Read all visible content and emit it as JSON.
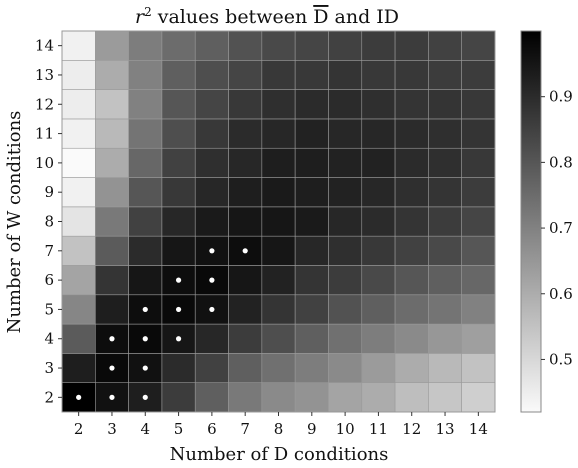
{
  "chart_data": {
    "type": "heatmap",
    "title": "r² values between D̅ and ID",
    "title_parts": {
      "r": "r",
      "exp": "2",
      "mid": " values between ",
      "dbar": "D",
      "end": " and ID"
    },
    "xlabel": "Number of D conditions",
    "ylabel": "Number of W conditions",
    "x": [
      2,
      3,
      4,
      5,
      6,
      7,
      8,
      9,
      10,
      11,
      12,
      13,
      14
    ],
    "y": [
      2,
      3,
      4,
      5,
      6,
      7,
      8,
      9,
      10,
      11,
      12,
      13,
      14
    ],
    "colormap": "greys",
    "value_range": [
      0.42,
      1.0
    ],
    "colorbar_ticks": [
      0.5,
      0.6,
      0.7,
      0.8,
      0.9
    ],
    "colorbar_tick_labels": [
      "0.5",
      "0.6",
      "0.7",
      "0.8",
      "0.9"
    ],
    "grid": true,
    "values": [
      [
        1.0,
        0.96,
        0.93,
        0.86,
        0.78,
        0.72,
        0.68,
        0.66,
        0.62,
        0.6,
        0.56,
        0.54,
        0.52
      ],
      [
        0.93,
        0.98,
        0.96,
        0.9,
        0.85,
        0.78,
        0.74,
        0.71,
        0.68,
        0.64,
        0.6,
        0.57,
        0.55
      ],
      [
        0.79,
        0.97,
        0.98,
        0.95,
        0.91,
        0.86,
        0.82,
        0.78,
        0.74,
        0.71,
        0.68,
        0.65,
        0.63
      ],
      [
        0.69,
        0.93,
        0.97,
        0.98,
        0.96,
        0.92,
        0.88,
        0.85,
        0.81,
        0.78,
        0.75,
        0.73,
        0.7
      ],
      [
        0.62,
        0.88,
        0.95,
        0.97,
        0.98,
        0.95,
        0.92,
        0.88,
        0.86,
        0.83,
        0.8,
        0.78,
        0.76
      ],
      [
        0.55,
        0.79,
        0.9,
        0.95,
        0.96,
        0.97,
        0.95,
        0.91,
        0.89,
        0.87,
        0.85,
        0.83,
        0.8
      ],
      [
        0.47,
        0.72,
        0.85,
        0.91,
        0.94,
        0.95,
        0.95,
        0.94,
        0.91,
        0.9,
        0.88,
        0.86,
        0.84
      ],
      [
        0.44,
        0.66,
        0.8,
        0.87,
        0.91,
        0.93,
        0.94,
        0.93,
        0.92,
        0.91,
        0.89,
        0.88,
        0.86
      ],
      [
        0.42,
        0.6,
        0.76,
        0.85,
        0.89,
        0.91,
        0.93,
        0.93,
        0.92,
        0.92,
        0.9,
        0.89,
        0.87
      ],
      [
        0.44,
        0.57,
        0.73,
        0.82,
        0.87,
        0.9,
        0.91,
        0.92,
        0.91,
        0.91,
        0.9,
        0.89,
        0.88
      ],
      [
        0.45,
        0.55,
        0.7,
        0.8,
        0.84,
        0.87,
        0.89,
        0.9,
        0.9,
        0.89,
        0.88,
        0.88,
        0.87
      ],
      [
        0.45,
        0.6,
        0.7,
        0.78,
        0.82,
        0.84,
        0.87,
        0.87,
        0.88,
        0.87,
        0.87,
        0.86,
        0.86
      ],
      [
        0.44,
        0.64,
        0.71,
        0.75,
        0.78,
        0.81,
        0.83,
        0.84,
        0.85,
        0.86,
        0.86,
        0.85,
        0.84
      ]
    ],
    "markers": [
      [
        2,
        2
      ],
      [
        3,
        2
      ],
      [
        4,
        2
      ],
      [
        3,
        3
      ],
      [
        4,
        3
      ],
      [
        3,
        4
      ],
      [
        4,
        4
      ],
      [
        5,
        4
      ],
      [
        4,
        5
      ],
      [
        5,
        5
      ],
      [
        6,
        5
      ],
      [
        5,
        6
      ],
      [
        6,
        6
      ],
      [
        6,
        7
      ],
      [
        7,
        7
      ]
    ]
  }
}
